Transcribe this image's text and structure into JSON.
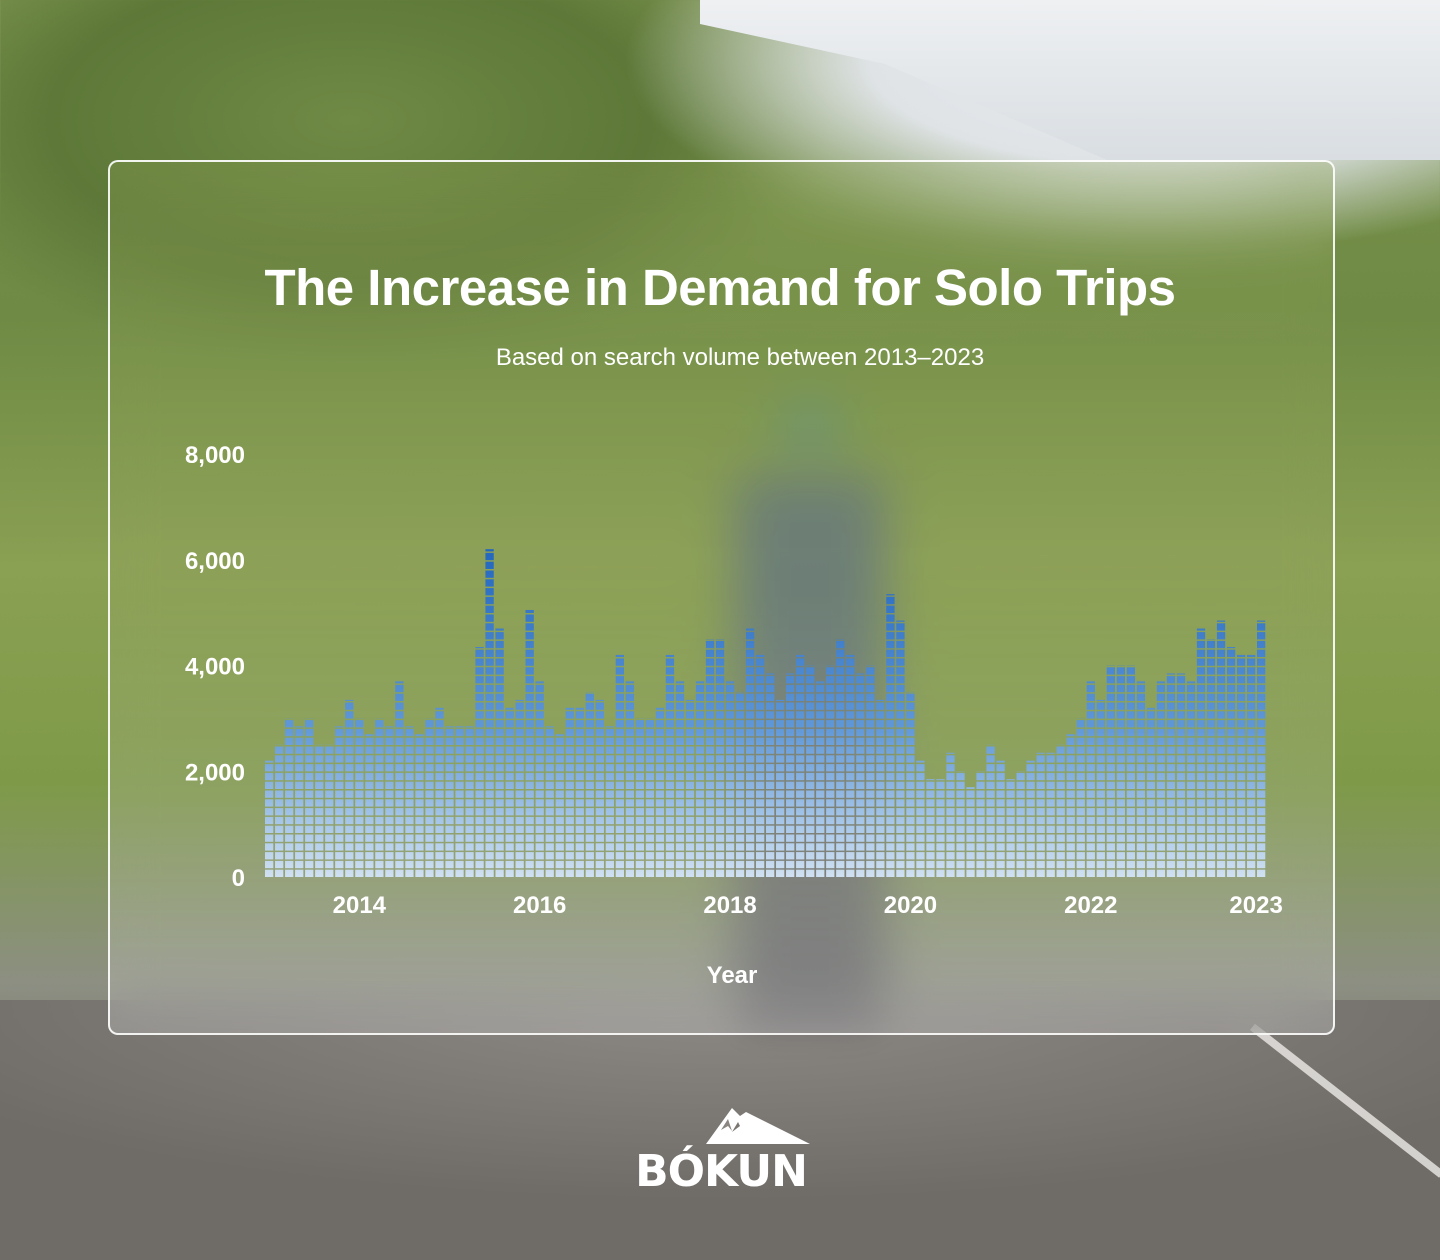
{
  "chart_data": {
    "type": "bar",
    "title": "The Increase in Demand for Solo Trips",
    "subtitle": "Based on search volume between 2013–2023",
    "xlabel": "Year",
    "ylabel": "",
    "ylim": [
      0,
      8000
    ],
    "yticks": [
      "0",
      "2,000",
      "4,000",
      "6,000",
      "8,000"
    ],
    "ytick_values": [
      0,
      2000,
      4000,
      6000,
      8000
    ],
    "xticks": [
      {
        "label": "2014",
        "at": 9
      },
      {
        "label": "2016",
        "at": 27
      },
      {
        "label": "2018",
        "at": 46
      },
      {
        "label": "2020",
        "at": 64
      },
      {
        "label": "2022",
        "at": 82
      },
      {
        "label": "2023",
        "at": 98.5
      }
    ],
    "grid": false,
    "bar_color_top": "#1f64be",
    "bar_color_bottom": "#cfe0f1",
    "values": [
      2200,
      2500,
      3000,
      2850,
      3000,
      2500,
      2500,
      2850,
      3350,
      3000,
      2700,
      3000,
      2850,
      3700,
      2850,
      2700,
      3000,
      3200,
      2850,
      2850,
      2850,
      4350,
      6200,
      4700,
      3200,
      3350,
      5050,
      3700,
      2850,
      2700,
      3200,
      3200,
      3500,
      3350,
      2850,
      4200,
      3700,
      3000,
      3000,
      3200,
      4200,
      3700,
      3350,
      3700,
      4500,
      4500,
      3700,
      3500,
      4700,
      4200,
      3850,
      3350,
      3850,
      4200,
      4000,
      3700,
      4000,
      4500,
      4200,
      3850,
      4000,
      3350,
      5350,
      4850,
      3500,
      2200,
      1850,
      1850,
      2350,
      2000,
      1700,
      2000,
      2500,
      2200,
      1850,
      2000,
      2200,
      2350,
      2350,
      2500,
      2700,
      3000,
      3700,
      3350,
      4000,
      4000,
      4000,
      3700,
      3200,
      3700,
      3850,
      3850,
      3700,
      4700,
      4500,
      4850,
      4350,
      4200,
      4200,
      4850
    ]
  },
  "brand": {
    "logo_text": "BÓKUN"
  }
}
